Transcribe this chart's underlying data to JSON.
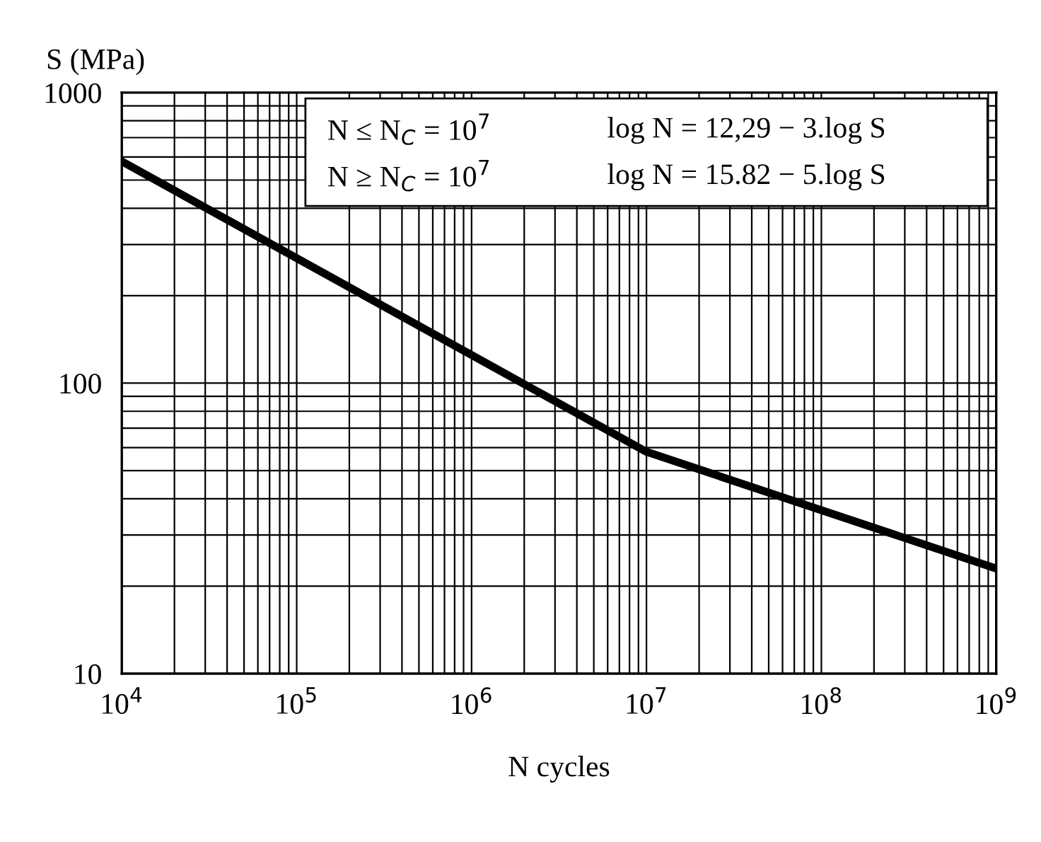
{
  "chart_data": {
    "type": "line",
    "xlabel": "N cycles",
    "ylabel": "S (MPa)",
    "x": [
      10000,
      10000000,
      1000000000
    ],
    "series": [
      {
        "color": "#000000",
        "values": [
          580,
          58,
          23
        ]
      }
    ],
    "log": "xy",
    "xlim": [
      10000,
      1000000000
    ],
    "ylim": [
      10,
      1000
    ],
    "xticks": [
      {
        "value": 10000,
        "label": "10$^{4}$"
      },
      {
        "value": 100000,
        "label": "10$^{5}$"
      },
      {
        "value": 1000000,
        "label": "10$^{6}$"
      },
      {
        "value": 10000000,
        "label": "10$^{7}$"
      },
      {
        "value": 100000000,
        "label": "10$^{8}$"
      },
      {
        "value": 1000000000,
        "label": "10$^{9}$"
      }
    ],
    "yticks": [
      10,
      100,
      1000
    ],
    "grid": true,
    "line_style": "solid",
    "marker": "none",
    "annotations": [
      "N ≤ N$_{C}$ = 10$^{7}$",
      "log N = 12,29 − 3.log S",
      "N ≥ N$_{C}$ = 10$^{7}$",
      "log N = 15.82 − 5.log S"
    ]
  }
}
